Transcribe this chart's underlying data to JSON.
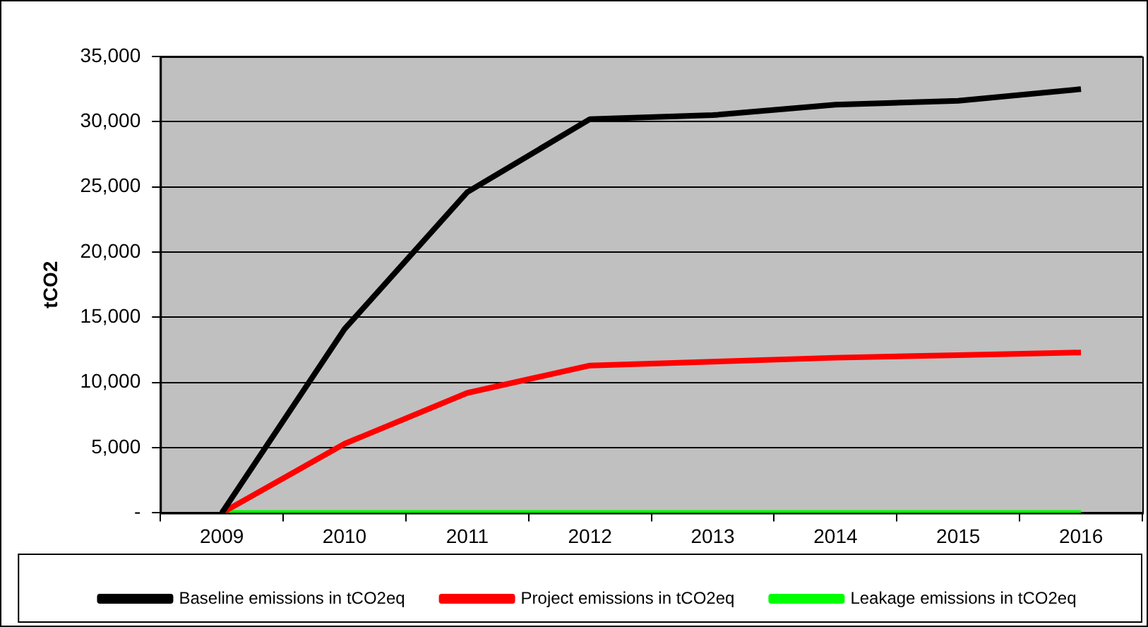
{
  "chart_data": {
    "type": "line",
    "ylabel": "tCO2",
    "categories": [
      "2009",
      "2010",
      "2011",
      "2012",
      "2013",
      "2014",
      "2015",
      "2016"
    ],
    "series": [
      {
        "name": "Baseline emissions in tCO2eq",
        "color": "#000000",
        "values": [
          0,
          14100,
          24600,
          30200,
          30500,
          31300,
          31600,
          32500
        ]
      },
      {
        "name": "Project emissions in tCO2eq",
        "color": "#ff0000",
        "values": [
          0,
          5300,
          9200,
          11300,
          11600,
          11900,
          12100,
          12300
        ]
      },
      {
        "name": "Leakage emissions in tCO2eq",
        "color": "#00ff00",
        "values": [
          0,
          0,
          0,
          0,
          0,
          0,
          0,
          0
        ]
      }
    ],
    "ylim": [
      0,
      35000
    ],
    "yticks": [
      {
        "value": 0,
        "label": "-"
      },
      {
        "value": 5000,
        "label": "5,000"
      },
      {
        "value": 10000,
        "label": "10,000"
      },
      {
        "value": 15000,
        "label": "15,000"
      },
      {
        "value": 20000,
        "label": "20,000"
      },
      {
        "value": 25000,
        "label": "25,000"
      },
      {
        "value": 30000,
        "label": "30,000"
      },
      {
        "value": 35000,
        "label": "35,000"
      }
    ],
    "grid": "y",
    "legend": "bottom",
    "marker": "none",
    "line_style": "solid"
  }
}
